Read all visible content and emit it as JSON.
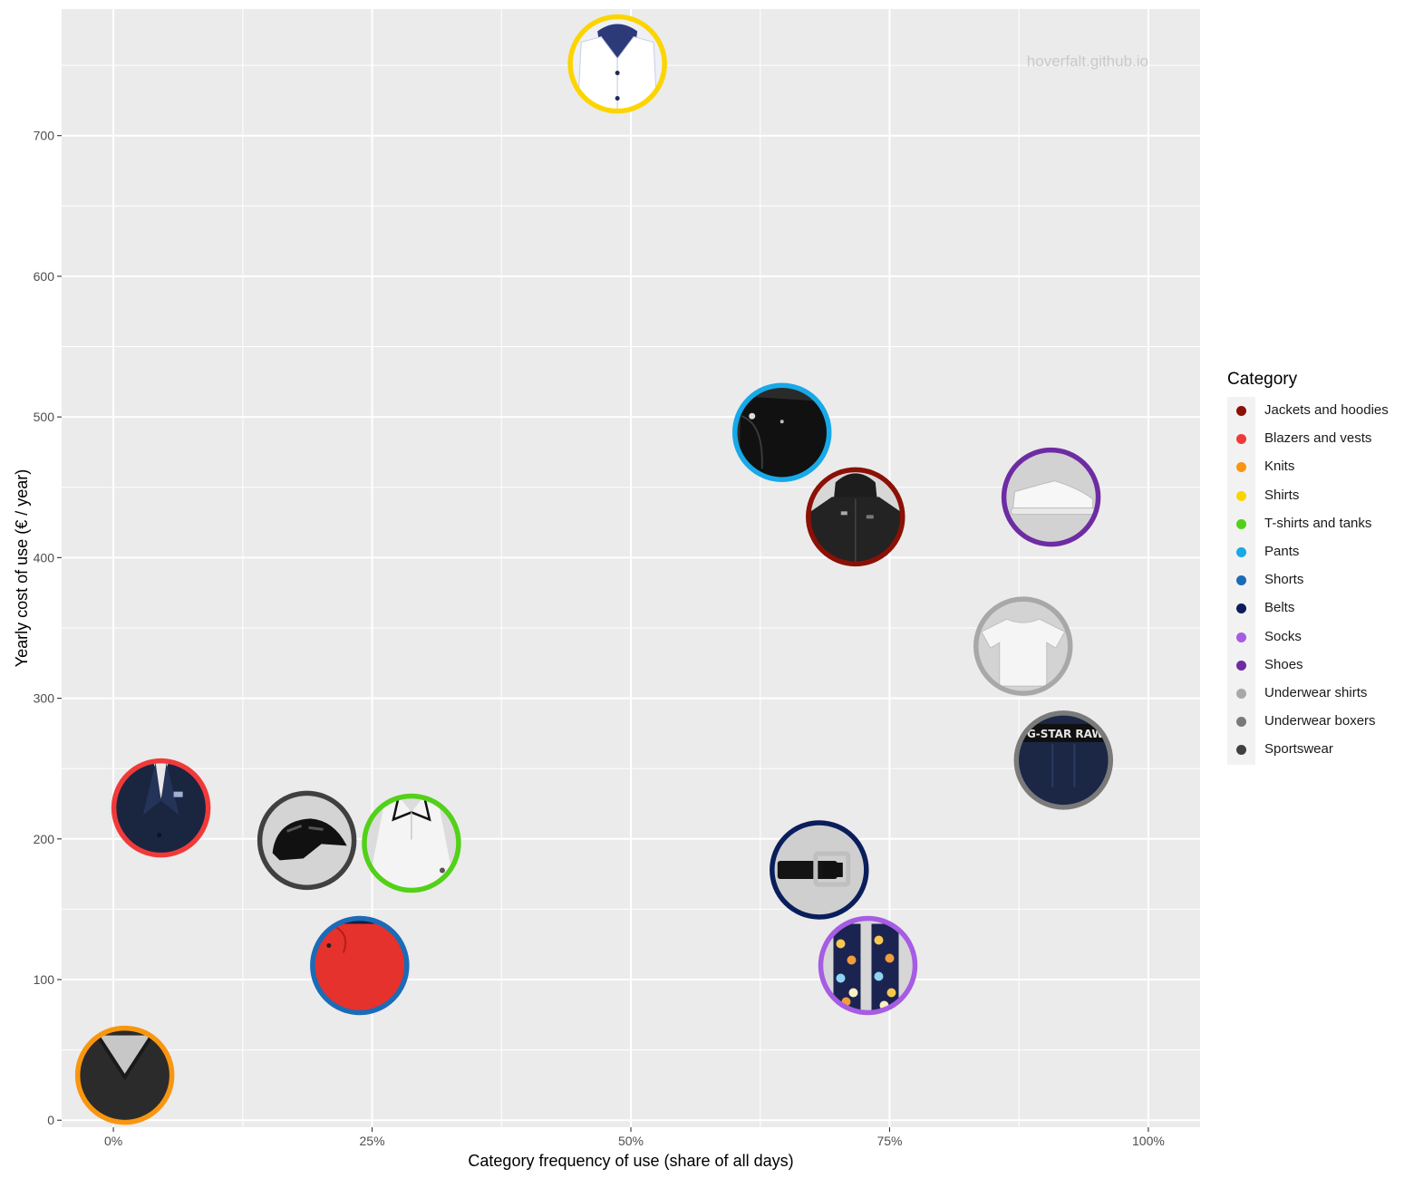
{
  "chart_data": {
    "type": "scatter",
    "xlabel": "Category frequency of use (share of all days)",
    "ylabel": "Yearly cost of use (€ / year)",
    "xlim": [
      -0.05,
      1.05
    ],
    "ylim": [
      -5,
      790
    ],
    "x_ticks": [
      {
        "value": 0,
        "label": "0%"
      },
      {
        "value": 0.25,
        "label": "25%"
      },
      {
        "value": 0.5,
        "label": "50%"
      },
      {
        "value": 0.75,
        "label": "75%"
      },
      {
        "value": 1.0,
        "label": "100%"
      }
    ],
    "y_ticks": [
      {
        "value": 0,
        "label": "0"
      },
      {
        "value": 100,
        "label": "100"
      },
      {
        "value": 200,
        "label": "200"
      },
      {
        "value": 300,
        "label": "300"
      },
      {
        "value": 400,
        "label": "400"
      },
      {
        "value": 500,
        "label": "500"
      },
      {
        "value": 600,
        "label": "600"
      },
      {
        "value": 700,
        "label": "700"
      }
    ],
    "grid": true,
    "watermark": "hoverfalt.github.io",
    "legend": {
      "title": "Category",
      "placement": "right",
      "entries": [
        {
          "name": "Jackets and hoodies",
          "color": "#8B1006"
        },
        {
          "name": "Blazers and vests",
          "color": "#F03A3A"
        },
        {
          "name": "Knits",
          "color": "#F9960F"
        },
        {
          "name": "Shirts",
          "color": "#FCD500"
        },
        {
          "name": "T-shirts and tanks",
          "color": "#52D118"
        },
        {
          "name": "Pants",
          "color": "#17A9E8"
        },
        {
          "name": "Shorts",
          "color": "#1A6BB8"
        },
        {
          "name": "Belts",
          "color": "#0B1E5C"
        },
        {
          "name": "Socks",
          "color": "#A65CE3"
        },
        {
          "name": "Shoes",
          "color": "#6E2CA3"
        },
        {
          "name": "Underwear shirts",
          "color": "#A8A8A8"
        },
        {
          "name": "Underwear boxers",
          "color": "#7A7A7A"
        },
        {
          "name": "Sportswear",
          "color": "#404040"
        }
      ]
    },
    "points": [
      {
        "category": "Shirts",
        "x": 0.487,
        "y": 751,
        "icon": "dress-shirt-icon"
      },
      {
        "category": "Pants",
        "x": 0.646,
        "y": 489,
        "icon": "pants-icon"
      },
      {
        "category": "Jackets and hoodies",
        "x": 0.717,
        "y": 429,
        "icon": "hooded-jacket-icon"
      },
      {
        "category": "Shoes",
        "x": 0.906,
        "y": 443,
        "icon": "sneaker-icon"
      },
      {
        "category": "Underwear shirts",
        "x": 0.879,
        "y": 337,
        "icon": "t-shirt-icon"
      },
      {
        "category": "Underwear boxers",
        "x": 0.918,
        "y": 256,
        "icon": "boxers-icon"
      },
      {
        "category": "Blazers and vests",
        "x": 0.046,
        "y": 222,
        "icon": "blazer-icon"
      },
      {
        "category": "Sportswear",
        "x": 0.187,
        "y": 199,
        "icon": "bike-helmet-icon"
      },
      {
        "category": "T-shirts and tanks",
        "x": 0.288,
        "y": 197,
        "icon": "polo-shirt-icon"
      },
      {
        "category": "Belts",
        "x": 0.682,
        "y": 178,
        "icon": "belt-icon"
      },
      {
        "category": "Shorts",
        "x": 0.238,
        "y": 110,
        "icon": "shorts-icon"
      },
      {
        "category": "Socks",
        "x": 0.729,
        "y": 110,
        "icon": "socks-icon"
      },
      {
        "category": "Knits",
        "x": 0.011,
        "y": 32,
        "icon": "knit-sweater-icon"
      }
    ]
  }
}
